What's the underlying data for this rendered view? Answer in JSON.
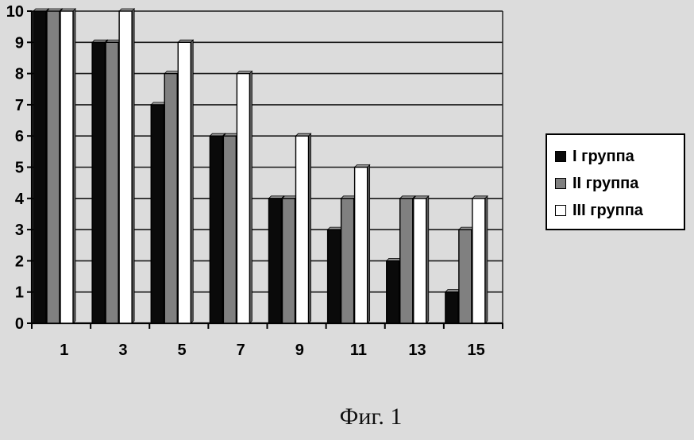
{
  "chart_data": {
    "type": "bar",
    "categories": [
      "1",
      "3",
      "5",
      "7",
      "9",
      "11",
      "13",
      "15"
    ],
    "series": [
      {
        "name": "I группа",
        "color": "#0a0a0a",
        "values": [
          10,
          9,
          7,
          6,
          4,
          3,
          2,
          1
        ]
      },
      {
        "name": "II группа",
        "color": "#808080",
        "values": [
          10,
          9,
          8,
          6,
          4,
          4,
          4,
          3
        ]
      },
      {
        "name": "III группа",
        "color": "#ffffff",
        "values": [
          10,
          10,
          9,
          8,
          6,
          5,
          4,
          4
        ]
      }
    ],
    "yticks": [
      "0",
      "1",
      "2",
      "3",
      "4",
      "5",
      "6",
      "7",
      "8",
      "9",
      "10"
    ],
    "ylim": [
      0,
      10
    ],
    "grid": true,
    "legend_position": "right"
  },
  "figure": {
    "caption": "Фиг. 1"
  }
}
